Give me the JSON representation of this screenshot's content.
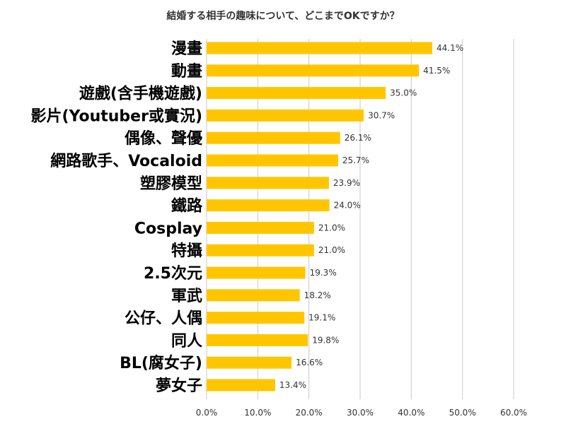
{
  "chart_data": {
    "type": "bar",
    "orientation": "horizontal",
    "title": "結婚する相手の趣味について、どこまでOKですか？",
    "categories": [
      "漫畫",
      "動畫",
      "遊戲(含手機遊戲)",
      "影片(Youtuber或實況)",
      "偶像、聲優",
      "網路歌手、Vocaloid",
      "塑膠模型",
      "鐵路",
      "Cosplay",
      "特攝",
      "2.5次元",
      "軍武",
      "公仔、人偶",
      "同人",
      "BL(腐女子)",
      "夢女子"
    ],
    "values": [
      44.1,
      41.5,
      35.0,
      30.7,
      26.1,
      25.7,
      23.9,
      24.0,
      21.0,
      21.0,
      19.3,
      18.2,
      19.1,
      19.8,
      16.6,
      13.4
    ],
    "value_labels": [
      "44.1%",
      "41.5%",
      "35.0%",
      "30.7%",
      "26.1%",
      "25.7%",
      "23.9%",
      "24.0%",
      "21.0%",
      "21.0%",
      "19.3%",
      "18.2%",
      "19.1%",
      "19.8%",
      "16.6%",
      "13.4%"
    ],
    "x_ticks": [
      0,
      10,
      20,
      30,
      40,
      50,
      60
    ],
    "x_tick_labels": [
      "0.0%",
      "10.0%",
      "20.0%",
      "30.0%",
      "40.0%",
      "50.0%",
      "60.0%"
    ],
    "xlim": [
      0,
      60
    ],
    "xlabel": "",
    "ylabel": "",
    "grid": true,
    "legend": "none",
    "bar_color": "#FFC600"
  }
}
